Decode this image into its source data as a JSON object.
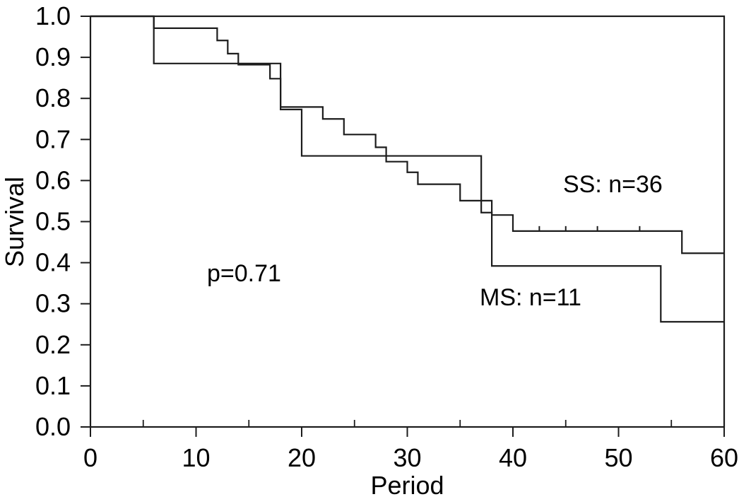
{
  "chart_data": {
    "type": "line",
    "subtype": "kaplan-meier-step",
    "title": "",
    "xlabel": "Period",
    "ylabel": "Survival",
    "xlim": [
      0,
      60
    ],
    "ylim": [
      0.0,
      1.0
    ],
    "grid": false,
    "frame": true,
    "background": "#ffffff",
    "line_color": "#1c1c1c",
    "text_color": "#000000",
    "x_major_ticks": [
      {
        "value": 0,
        "label": "0"
      },
      {
        "value": 10,
        "label": "10"
      },
      {
        "value": 20,
        "label": "20"
      },
      {
        "value": 30,
        "label": "30"
      },
      {
        "value": 40,
        "label": "40"
      },
      {
        "value": 50,
        "label": "50"
      },
      {
        "value": 60,
        "label": "60"
      }
    ],
    "x_minor_ticks": [
      5,
      15,
      25,
      35,
      45,
      55
    ],
    "y_major_ticks": [
      {
        "value": 1.0,
        "label": "1.0"
      },
      {
        "value": 0.9,
        "label": "0.9"
      },
      {
        "value": 0.8,
        "label": "0.8"
      },
      {
        "value": 0.7,
        "label": "0.7"
      },
      {
        "value": 0.6,
        "label": "0.6"
      },
      {
        "value": 0.5,
        "label": "0.5"
      },
      {
        "value": 0.4,
        "label": "0.4"
      },
      {
        "value": 0.3,
        "label": "0.3"
      },
      {
        "value": 0.2,
        "label": "0.2"
      },
      {
        "value": 0.1,
        "label": "0.1"
      },
      {
        "value": 0.0,
        "label": "0.0"
      }
    ],
    "annotations": [
      {
        "id": "p_value",
        "text": "p=0.71"
      },
      {
        "id": "ss_label",
        "text": "SS: n=36"
      },
      {
        "id": "ms_label",
        "text": "MS: n=11"
      }
    ],
    "series": [
      {
        "name": "SS",
        "n": 36,
        "label": "SS: n=36",
        "color": "#1c1c1c",
        "steps": [
          [
            0,
            1.0
          ],
          [
            6,
            0.971
          ],
          [
            12,
            0.941
          ],
          [
            13,
            0.909
          ],
          [
            14,
            0.882
          ],
          [
            17,
            0.848
          ],
          [
            18,
            0.779
          ],
          [
            22,
            0.75
          ],
          [
            24,
            0.712
          ],
          [
            27,
            0.681
          ],
          [
            28,
            0.646
          ],
          [
            30,
            0.62
          ],
          [
            31,
            0.591
          ],
          [
            35,
            0.551
          ],
          [
            38,
            0.516
          ],
          [
            40,
            0.477
          ],
          [
            56,
            0.423
          ]
        ],
        "end": 60,
        "censor_marks": [
          [
            42.5,
            0.477
          ],
          [
            45,
            0.477
          ],
          [
            48,
            0.477
          ],
          [
            52,
            0.477
          ]
        ]
      },
      {
        "name": "MS",
        "n": 11,
        "label": "MS: n=11",
        "color": "#1c1c1c",
        "steps": [
          [
            0,
            1.0
          ],
          [
            6,
            0.885
          ],
          [
            18,
            0.773
          ],
          [
            20,
            0.66
          ],
          [
            37,
            0.522
          ],
          [
            38,
            0.392
          ],
          [
            54,
            0.256
          ]
        ],
        "end": 60,
        "censor_marks": []
      }
    ]
  }
}
